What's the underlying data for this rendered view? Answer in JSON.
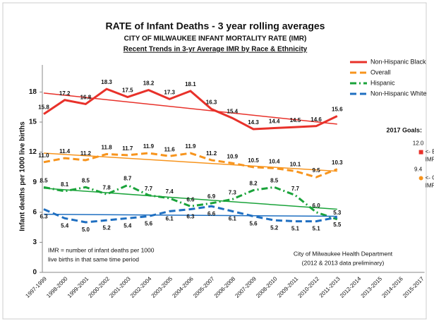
{
  "chart_data": {
    "type": "line",
    "title": "RATE of Infant Deaths - 3 year rolling averages",
    "subtitle": "CITY OF MILWAUKEE INFANT MORTALITY RATE (IMR)",
    "subtitle2": "Recent Trends in 3-yr Average IMR by Race & Ethnicity",
    "ylabel": "Infant deaths per 1000 live births",
    "categories": [
      "1997-1999",
      "1998-2000",
      "1999-2001",
      "2000-2002",
      "2001-2003",
      "2002-2004",
      "2003-2005",
      "2004-2006",
      "2005-2007",
      "2006-2008",
      "2007-2009",
      "2008-2010",
      "2009-2011",
      "2010-2012",
      "2011-2013",
      "2012-2014",
      "2013-2015",
      "2014-2016",
      "2015-2017"
    ],
    "ylim": [
      0,
      20
    ],
    "yticks": [
      0,
      3,
      6,
      9,
      12,
      15,
      18
    ],
    "series": [
      {
        "name": "Non-Hispanic Black",
        "color": "#e8312a",
        "style": "solid",
        "values": [
          15.8,
          17.2,
          16.8,
          18.3,
          17.5,
          18.2,
          17.3,
          18.1,
          16.3,
          15.4,
          14.3,
          14.4,
          14.5,
          14.6,
          15.6,
          null,
          null,
          null,
          null
        ],
        "value_labels": [
          "15.8",
          "17.2",
          "16.8",
          "18.3",
          "17.5",
          "18.2",
          "17.3",
          "18.1",
          "16.3",
          "15.4",
          "14.3",
          "14.4",
          "14.5",
          "14.6",
          "15.6",
          null,
          null,
          null,
          null
        ],
        "trend": [
          17.9,
          14.8
        ]
      },
      {
        "name": "Overall",
        "color": "#f7941d",
        "style": "dashed",
        "values": [
          11.0,
          11.4,
          11.2,
          11.8,
          11.7,
          11.9,
          11.6,
          11.9,
          11.2,
          10.9,
          10.5,
          10.4,
          10.1,
          9.5,
          10.3,
          null,
          null,
          null,
          null
        ],
        "value_labels": [
          "11.0",
          "11.4",
          "11.2",
          "11.8",
          "11.7",
          "11.9",
          "11.6",
          "11.9",
          "11.2",
          "10.9",
          "10.5",
          "10.4",
          "10.1",
          "9.5",
          "10.3",
          null,
          null,
          null,
          null
        ],
        "trend": [
          11.9,
          10.1
        ]
      },
      {
        "name": "Hispanic",
        "color": "#1aa33a",
        "style": "dashdot",
        "values": [
          8.5,
          8.1,
          8.5,
          7.8,
          8.7,
          7.7,
          7.4,
          6.6,
          6.9,
          7.3,
          8.2,
          8.5,
          7.7,
          6.0,
          5.3,
          null,
          null,
          null,
          null
        ],
        "value_labels": [
          "8.5",
          "8.1",
          "8.5",
          "7.8",
          "8.7",
          "7.7",
          "7.4",
          "6.6",
          "6.9",
          "7.3",
          "8.2",
          "8.5",
          "7.7",
          "6.0",
          "5.3",
          null,
          null,
          null,
          null
        ],
        "trend": [
          8.4,
          6.3
        ]
      },
      {
        "name": "Non-Hispanic White",
        "color": "#1f6fc1",
        "style": "dashed",
        "values": [
          6.3,
          5.4,
          5.0,
          5.2,
          5.4,
          5.6,
          6.1,
          6.3,
          6.6,
          6.1,
          5.6,
          5.2,
          5.1,
          5.1,
          5.5,
          null,
          null,
          null,
          null
        ],
        "value_labels": [
          "6.3",
          "5.4",
          "5.0",
          "5.2",
          "5.4",
          "5.6",
          "6.1",
          "6.3",
          "6.6",
          "6.1",
          "5.6",
          "5.2",
          "5.1",
          "5.1",
          "5.5",
          null,
          null,
          null,
          null
        ],
        "trend": [
          5.8,
          5.6
        ]
      }
    ],
    "goals_title": "2017 Goals:",
    "goals": [
      {
        "value": 12.0,
        "value_label": "12.0",
        "label": [
          "<- Black",
          "IMR"
        ],
        "color": "#e8312a",
        "shape": "square"
      },
      {
        "value": 9.4,
        "value_label": "9.4",
        "label": [
          "<- Overall",
          "IMR"
        ],
        "color": "#f7941d",
        "shape": "circle"
      }
    ],
    "note": [
      "IMR = number of infant deaths per 1000",
      "live births in that same time period"
    ],
    "source": [
      "City of Milwaukee Health Department",
      "(2012 & 2013 data preliminary)"
    ]
  }
}
